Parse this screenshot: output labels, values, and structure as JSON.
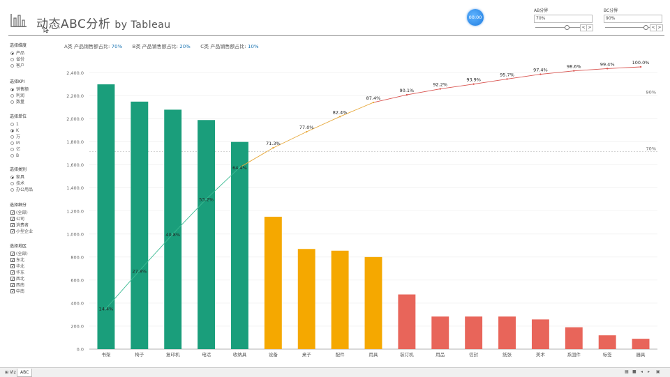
{
  "header": {
    "title": "动态ABC分析",
    "title_by": "by Tableau",
    "timer": "00:00"
  },
  "params": [
    {
      "label": "AB分界",
      "value": "70%",
      "level": 0.7
    },
    {
      "label": "BC分界",
      "value": "90%",
      "level": 0.9
    }
  ],
  "summary": {
    "a_label": "A类 产品销售额占比:",
    "a_value": "70%",
    "b_label": "B类 产品销售额占比:",
    "b_value": "20%",
    "c_label": "C类 产品销售额占比:",
    "c_value": "10%"
  },
  "filters": {
    "dimension": {
      "title": "选择维度",
      "options": [
        "产品",
        "省份",
        "客户"
      ],
      "selected": 0
    },
    "kpi": {
      "title": "选择KPI",
      "options": [
        "销售额",
        "利润",
        "数量"
      ],
      "selected": 0
    },
    "unit": {
      "title": "选择单位",
      "options": [
        "1",
        "K",
        "万",
        "M",
        "亿",
        "B"
      ],
      "selected": 1
    },
    "class": {
      "title": "选择类别",
      "options": [
        "家具",
        "技术",
        "办公用品"
      ],
      "selected": 0
    },
    "segment": {
      "title": "选择细分",
      "options": [
        "(全部)",
        "公司",
        "消费者",
        "小型企业"
      ]
    },
    "region": {
      "title": "选择地区",
      "options": [
        "(全部)",
        "东北",
        "华北",
        "华东",
        "西北",
        "西南",
        "中南"
      ]
    }
  },
  "tabs": {
    "viz": "Viz",
    "abc": "ABC"
  },
  "colors": {
    "A": "#1a9e7b",
    "B": "#f5a800",
    "C": "#e8655a",
    "lineA": "#3dbc94",
    "lineB": "#e7a83a",
    "lineC": "#d9534f"
  },
  "chart_data": {
    "type": "bar",
    "categories": [
      "书架",
      "椅子",
      "复印机",
      "电话",
      "收纳具",
      "设备",
      "桌子",
      "配件",
      "用具",
      "装订机",
      "用品",
      "信封",
      "纸张",
      "美术",
      "系固件",
      "标签",
      "器具"
    ],
    "values": [
      2300,
      2150,
      2080,
      1990,
      1800,
      1150,
      870,
      855,
      800,
      475,
      283,
      283,
      283,
      258,
      190,
      120,
      90
    ],
    "classes": [
      "A",
      "A",
      "A",
      "A",
      "A",
      "B",
      "B",
      "B",
      "B",
      "C",
      "C",
      "C",
      "C",
      "C",
      "C",
      "C",
      "C"
    ],
    "cumulative_pct": [
      14.4,
      27.8,
      40.8,
      53.2,
      64.4,
      71.3,
      77.0,
      82.4,
      87.4,
      90.1,
      92.2,
      93.9,
      95.7,
      97.4,
      98.6,
      99.4,
      100.0
    ],
    "cumulative_labels": [
      "14.4%",
      "27.8%",
      "40.8%",
      "53.2%",
      "64.4%",
      "71.3%",
      "77.0%",
      "82.4%",
      "87.4%",
      "90.1%",
      "92.2%",
      "93.9%",
      "95.7%",
      "97.4%",
      "98.6%",
      "99.4%",
      "100.0%"
    ],
    "y_ticks": [
      "0.0",
      "200.0",
      "400.0",
      "600.0",
      "800.0",
      "1,000.0",
      "1,200.0",
      "1,400.0",
      "1,600.0",
      "1,800.0",
      "2,000.0",
      "2,200.0",
      "2,400.0"
    ],
    "ylim": [
      0,
      2500
    ],
    "reference_lines": [
      {
        "label": "70%",
        "pct": 70
      },
      {
        "label": "90%",
        "pct": 90
      }
    ]
  }
}
